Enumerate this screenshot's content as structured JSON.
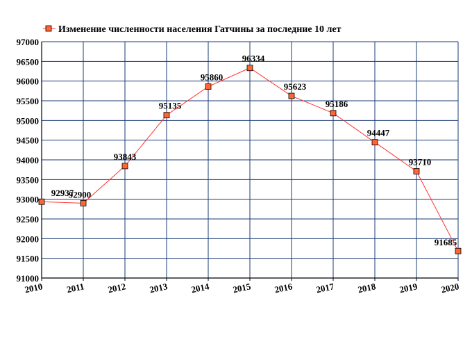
{
  "chart_data": {
    "type": "line",
    "title": "",
    "xlabel": "",
    "ylabel": "",
    "legend": {
      "position": "top-left",
      "label": "Изменение численности населения Гатчины за последние 10 лет"
    },
    "x": [
      "2010",
      "2011",
      "2012",
      "2013",
      "2014",
      "2015",
      "2016",
      "2017",
      "2018",
      "2019",
      "2020"
    ],
    "series": [
      {
        "name": "Изменение численности населения Гатчины за последние 10 лет",
        "values": [
          92937,
          92900,
          93843,
          95135,
          95860,
          96334,
          95623,
          95186,
          94447,
          93710,
          91685
        ],
        "labels": [
          "92937",
          "92900",
          "93843",
          "95135",
          "95860",
          "96334",
          "95623",
          "95186",
          "94447",
          "93710",
          "91685"
        ]
      }
    ],
    "ylim": [
      91000,
      97000
    ],
    "yticks": [
      "91000",
      "91500",
      "92000",
      "92500",
      "93000",
      "93500",
      "94000",
      "94500",
      "95000",
      "95500",
      "96000",
      "96500",
      "97000"
    ],
    "grid": true,
    "colors": {
      "line": "#ff3333",
      "marker_fill": "#ff6633",
      "marker_stroke": "#000000",
      "grid": "#1a3a73",
      "plot_border": "#1a3a73",
      "axis_zero": "#000000"
    }
  }
}
